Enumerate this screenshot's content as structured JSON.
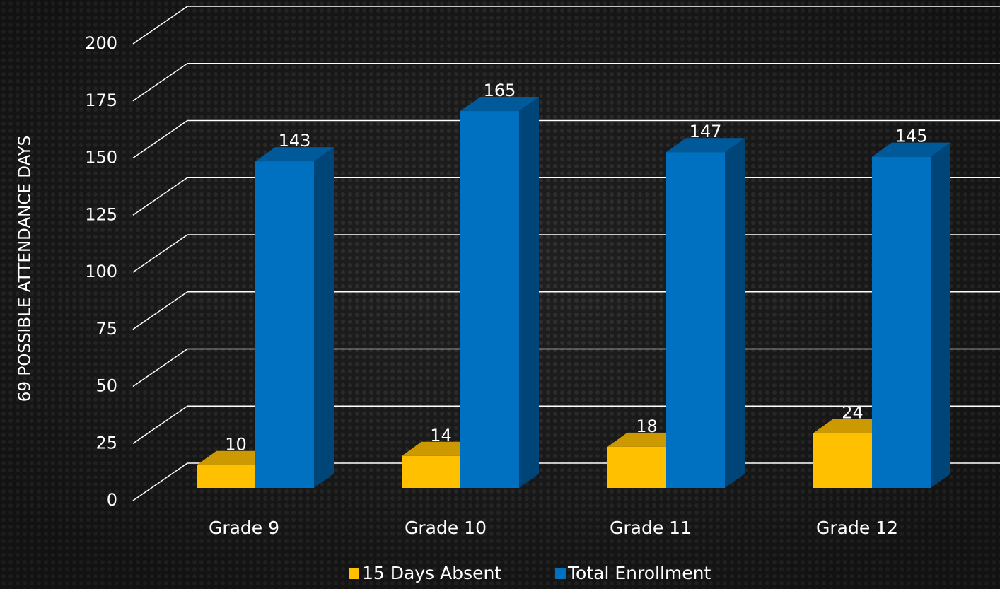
{
  "chart_data": {
    "type": "bar3d",
    "y_label": "69 POSSIBLE ATTENDANCE DAYS",
    "categories": [
      "Grade 9",
      "Grade 10",
      "Grade 11",
      "Grade 12"
    ],
    "series": [
      {
        "name": "15 Days Absent",
        "color": "#ffc000",
        "values": [
          10,
          14,
          18,
          24
        ]
      },
      {
        "name": "Total Enrollment",
        "color": "#0070c0",
        "values": [
          143,
          165,
          147,
          145
        ]
      }
    ],
    "ylim": [
      0,
      225
    ],
    "yticks": [
      0,
      25,
      50,
      75,
      100,
      125,
      150,
      175,
      200
    ],
    "grid": true
  }
}
